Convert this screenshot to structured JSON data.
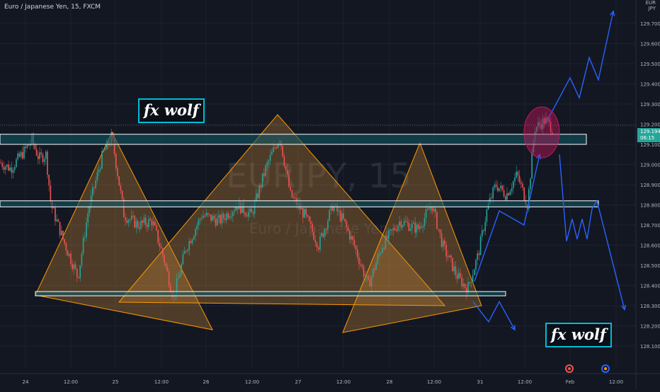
{
  "header": {
    "symbol_title": "Euro / Japanese Yen, 15, FXCM"
  },
  "watermark": {
    "ticker": "EURJPY, 15",
    "name": "Euro / Japanese Yen"
  },
  "price_axis": {
    "corner_label_1": "EUR",
    "corner_label_2": "JPY",
    "current_price": "129.194",
    "countdown": "06:15"
  },
  "brand": {
    "top_label": "fx wolf",
    "bottom_label": "fx wolf"
  },
  "colors": {
    "background": "#131722",
    "bull": "#26a69a",
    "bear": "#ef5350",
    "zone_fill": "#0e5a66",
    "zone_border": "#ffffff",
    "triangle_fill": "#c98a3a",
    "triangle_border": "#ff9800",
    "projection": "#2962ff",
    "highlight_circle": "#c2185b"
  },
  "icons": {
    "event_1": "earnings-event-icon",
    "event_2": "dividend-event-icon"
  },
  "chart_data": {
    "type": "candlestick",
    "symbol": "EURJPY",
    "interval": "15",
    "ylim": [
      128.05,
      129.85
    ],
    "y_ticks": [
      129.7,
      129.6,
      129.5,
      129.4,
      129.3,
      129.2,
      129.1,
      129.0,
      128.9,
      128.8,
      128.7,
      128.6,
      128.5,
      128.4,
      128.3,
      128.2,
      128.1
    ],
    "x_ticks": [
      "24",
      "12:00",
      "25",
      "12:00",
      "26",
      "12:00",
      "27",
      "12:00",
      "28",
      "12:00",
      "31",
      "12:00",
      "Feb",
      "12:00"
    ],
    "price_path": [
      [
        0,
        129.01
      ],
      [
        15,
        128.98
      ],
      [
        35,
        129.07
      ],
      [
        45,
        129.12
      ],
      [
        55,
        129.03
      ],
      [
        65,
        129.05
      ],
      [
        72,
        128.8
      ],
      [
        90,
        128.62
      ],
      [
        110,
        128.44
      ],
      [
        125,
        128.78
      ],
      [
        145,
        129.05
      ],
      [
        158,
        129.14
      ],
      [
        175,
        128.75
      ],
      [
        195,
        128.7
      ],
      [
        215,
        128.72
      ],
      [
        230,
        128.55
      ],
      [
        245,
        128.34
      ],
      [
        262,
        128.58
      ],
      [
        285,
        128.75
      ],
      [
        310,
        128.72
      ],
      [
        335,
        128.8
      ],
      [
        355,
        128.75
      ],
      [
        375,
        128.98
      ],
      [
        395,
        129.14
      ],
      [
        410,
        128.85
      ],
      [
        430,
        128.75
      ],
      [
        450,
        128.6
      ],
      [
        470,
        128.8
      ],
      [
        485,
        128.72
      ],
      [
        500,
        128.6
      ],
      [
        520,
        128.4
      ],
      [
        540,
        128.6
      ],
      [
        565,
        128.72
      ],
      [
        590,
        128.68
      ],
      [
        610,
        128.8
      ],
      [
        625,
        128.6
      ],
      [
        645,
        128.45
      ],
      [
        660,
        128.38
      ],
      [
        675,
        128.55
      ],
      [
        688,
        128.78
      ],
      [
        700,
        128.9
      ],
      [
        715,
        128.85
      ],
      [
        730,
        128.95
      ],
      [
        745,
        128.8
      ],
      [
        755,
        129.18
      ],
      [
        770,
        129.22
      ],
      [
        782,
        129.17
      ]
    ],
    "horizontal_zones": [
      {
        "low": 129.1,
        "high": 129.15
      },
      {
        "low": 128.79,
        "high": 128.82
      },
      {
        "low": 128.35,
        "high": 128.37
      }
    ],
    "projections": [
      {
        "points": [
          [
            770,
            129.2
          ],
          [
            805,
            129.43
          ],
          [
            818,
            129.33
          ],
          [
            832,
            129.53
          ],
          [
            845,
            129.42
          ],
          [
            866,
            129.76
          ]
        ]
      },
      {
        "points": [
          [
            790,
            129.05
          ],
          [
            800,
            128.62
          ],
          [
            808,
            128.73
          ],
          [
            815,
            128.63
          ],
          [
            822,
            128.73
          ],
          [
            829,
            128.63
          ],
          [
            836,
            128.78
          ],
          [
            843,
            128.82
          ],
          [
            882,
            128.28
          ]
        ]
      },
      {
        "points": [
          [
            668,
            128.32
          ],
          [
            690,
            128.22
          ],
          [
            705,
            128.32
          ],
          [
            727,
            128.18
          ]
        ]
      },
      {
        "points": [
          [
            670,
            128.42
          ],
          [
            705,
            128.77
          ],
          [
            740,
            128.7
          ],
          [
            762,
            129.05
          ]
        ]
      }
    ]
  }
}
